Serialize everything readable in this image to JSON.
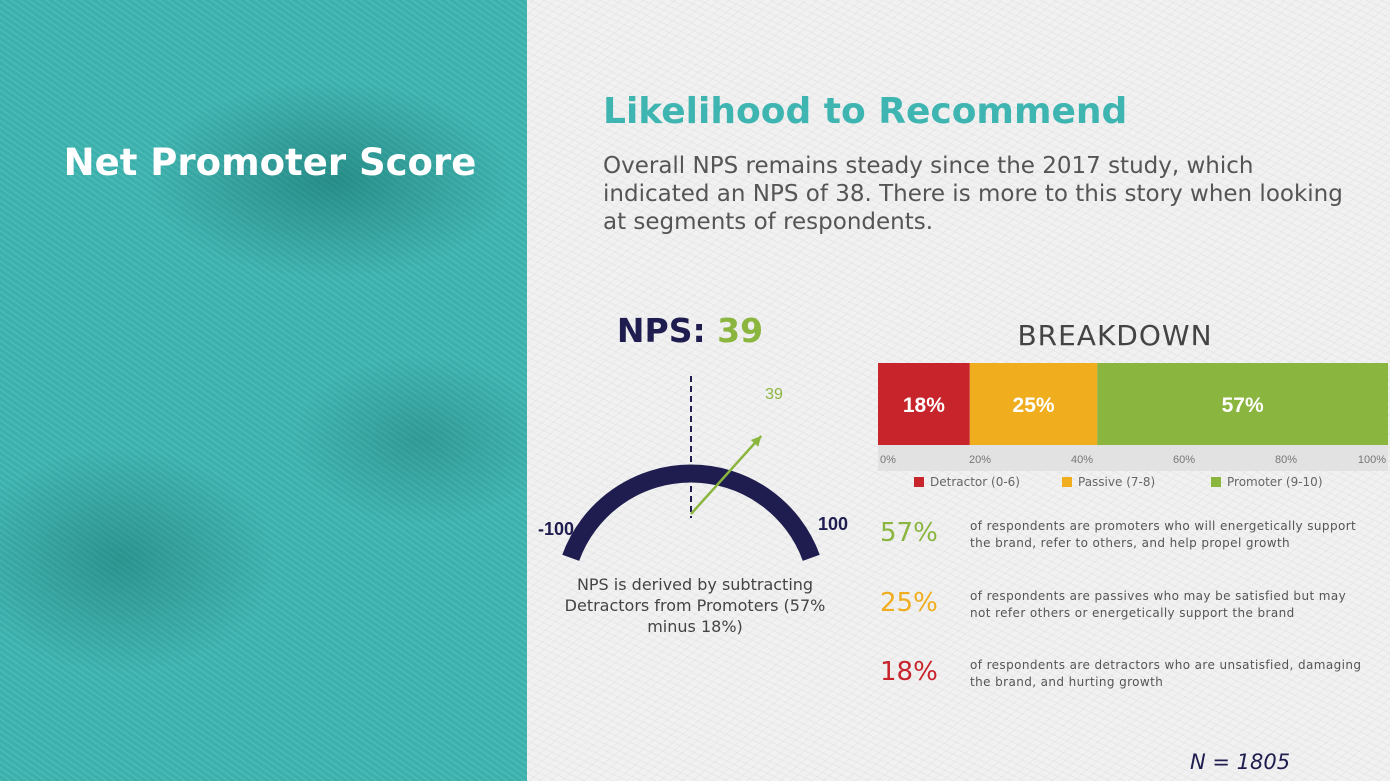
{
  "left": {
    "title": "Net Promoter Score"
  },
  "heading": "Likelihood to Recommend",
  "intro": "Overall NPS remains steady since the 2017 study, which indicated an NPS of 38. There is more to this story when looking at segments of respondents.",
  "nps": {
    "label": "NPS:",
    "value_label": "39",
    "note": "NPS is derived by subtracting Detractors from Promoters (57% minus 18%)"
  },
  "breakdown_title": "BREAKDOWN",
  "stats": [
    {
      "pct": "57%",
      "color": "#8ab53e",
      "text": "of respondents are promoters who will energetically support the brand, refer to others, and help propel growth"
    },
    {
      "pct": "25%",
      "color": "#f0ad1e",
      "text": "of respondents are passives who may be satisfied but may not refer others or energetically support the brand"
    },
    {
      "pct": "18%",
      "color": "#c8242c",
      "text": "of respondents are detractors who are unsatisfied, damaging the brand, and hurting growth"
    }
  ],
  "footnote": "N = 1805",
  "colors": {
    "teal": "#3fb5b1",
    "navy": "#1f1d4f",
    "green": "#8ab53e",
    "orange": "#f0ad1e",
    "red": "#c8242c"
  },
  "chart_data": [
    {
      "type": "gauge",
      "min": -100,
      "max": 100,
      "value": 39,
      "min_label": "-100",
      "max_label": "100",
      "value_label": "39"
    },
    {
      "type": "bar",
      "orientation": "horizontal",
      "stacked": true,
      "title": "BREAKDOWN",
      "xlim": [
        0,
        100
      ],
      "x_ticks": [
        "0%",
        "20%",
        "40%",
        "60%",
        "80%",
        "100%"
      ],
      "series": [
        {
          "name": "Detractor (0-6)",
          "value": 18,
          "label": "18%",
          "color": "#c8242c"
        },
        {
          "name": "Passive (7-8)",
          "value": 25,
          "label": "25%",
          "color": "#f0ad1e"
        },
        {
          "name": "Promoter (9-10)",
          "value": 57,
          "label": "57%",
          "color": "#8ab53e"
        }
      ],
      "legend_position": "bottom"
    }
  ]
}
